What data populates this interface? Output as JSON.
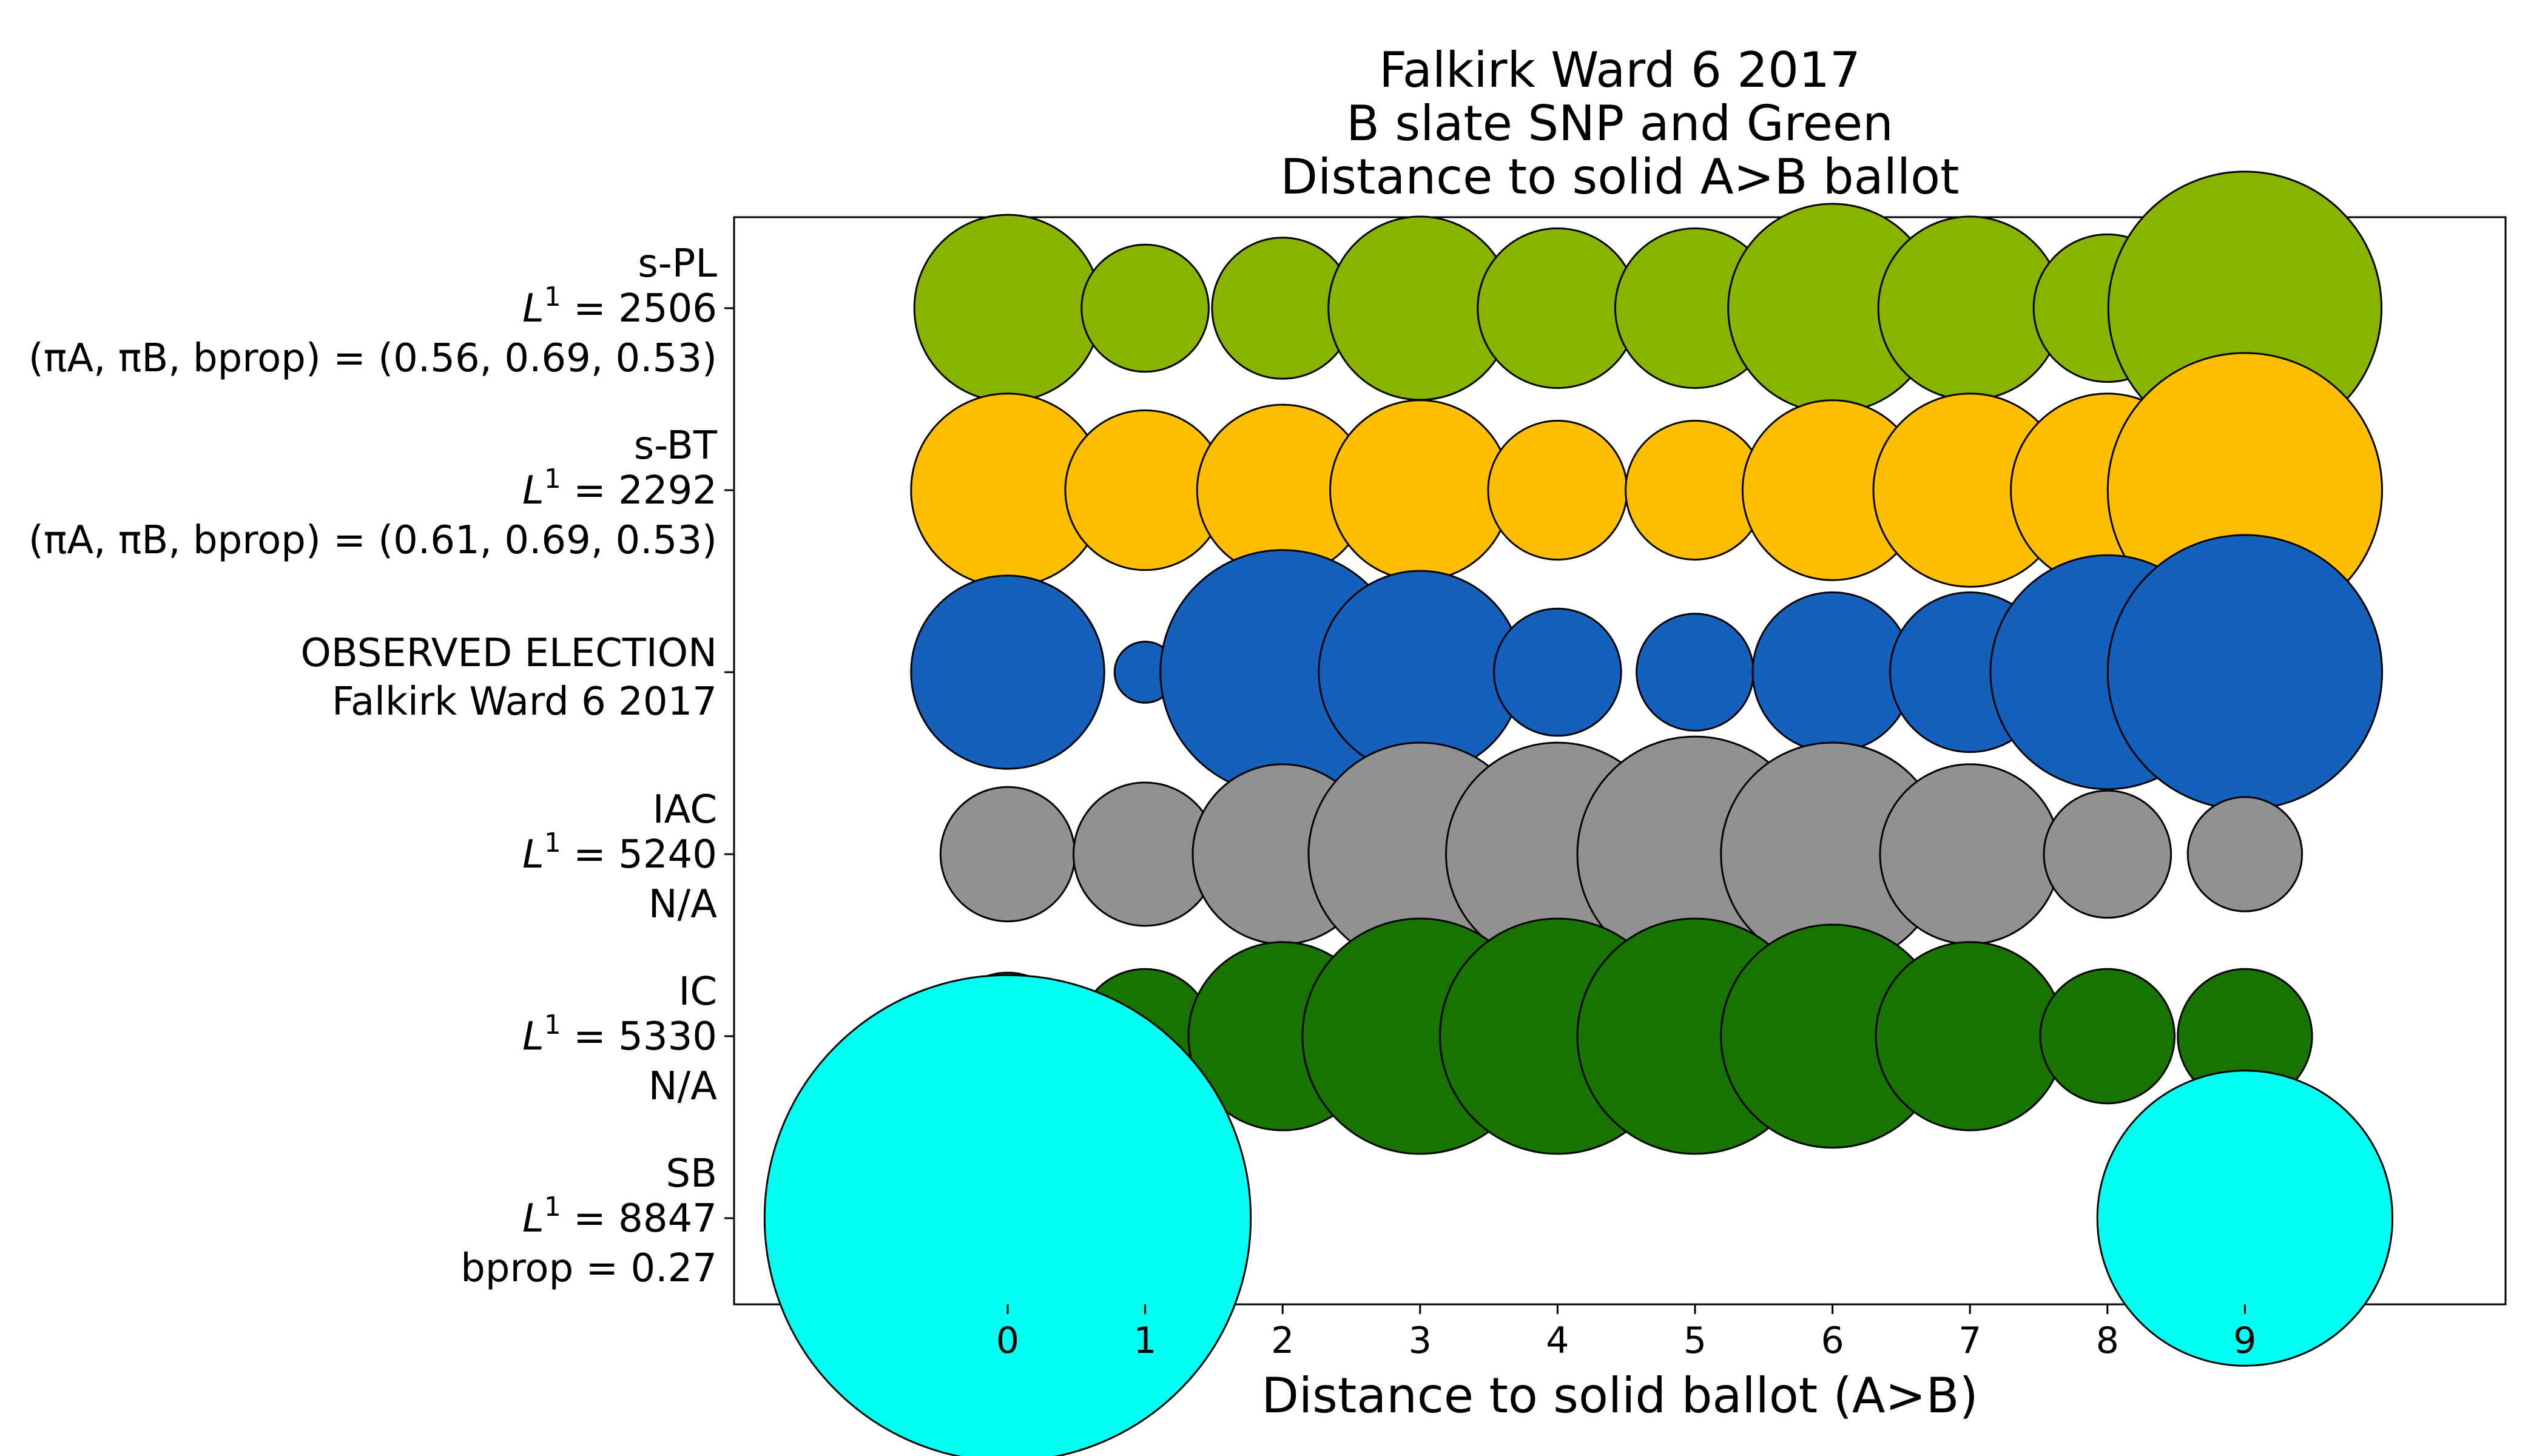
{
  "chart_data": {
    "type": "scatter",
    "title_lines": [
      "Falkirk Ward 6 2017",
      "B slate SNP and Green",
      "Distance to solid A>B ballot"
    ],
    "xlabel": "Distance to solid ballot (A>B)",
    "ylabel": "",
    "x_ticks": [
      "0",
      "1",
      "2",
      "3",
      "4",
      "5",
      "6",
      "7",
      "8",
      "9"
    ],
    "xlim": [
      -2,
      11
    ],
    "grid": false,
    "series": [
      {
        "key": "s-pl",
        "color": "#88b400",
        "label": {
          "name": "s-PL",
          "metric_symbol": "L",
          "metric_power": "1",
          "metric_value": "= 2506",
          "params_text": "(πA, πB, bprop) = (0.56, 0.69, 0.53)"
        },
        "values": [
          0.056,
          0.026,
          0.032,
          0.054,
          0.041,
          0.041,
          0.07,
          0.054,
          0.035,
          0.12
        ]
      },
      {
        "key": "s-bt",
        "color": "#ffbf00",
        "label": {
          "name": "s-BT",
          "metric_symbol": "L",
          "metric_power": "1",
          "metric_value": "= 2292",
          "params_text": "(πA, πB, bprop) = (0.61, 0.69, 0.53)"
        },
        "values": [
          0.06,
          0.041,
          0.047,
          0.052,
          0.031,
          0.031,
          0.052,
          0.06,
          0.06,
          0.121
        ]
      },
      {
        "key": "observed",
        "color": "#1560bd",
        "label": {
          "name": "OBSERVED ELECTION",
          "subtitle": "Falkirk Ward 6 2017"
        },
        "values": [
          0.06,
          0.006,
          0.096,
          0.066,
          0.026,
          0.022,
          0.041,
          0.041,
          0.088,
          0.121
        ]
      },
      {
        "key": "iac",
        "color": "#919191",
        "label": {
          "name": "IAC",
          "metric_symbol": "L",
          "metric_power": "1",
          "metric_value": "= 5240",
          "params_text": "N/A"
        },
        "values": [
          0.029,
          0.033,
          0.052,
          0.08,
          0.08,
          0.089,
          0.08,
          0.052,
          0.026,
          0.021
        ]
      },
      {
        "key": "ic",
        "color": "#197300",
        "label": {
          "name": "IC",
          "metric_symbol": "L",
          "metric_power": "1",
          "metric_value": "= 5330",
          "params_text": "N/A"
        },
        "values": [
          0.026,
          0.029,
          0.057,
          0.089,
          0.089,
          0.089,
          0.08,
          0.057,
          0.029,
          0.029
        ]
      },
      {
        "key": "sb",
        "color": "#00fff0",
        "label": {
          "name": "SB",
          "metric_symbol": "L",
          "metric_power": "1",
          "metric_value": "= 8847",
          "params_text": "bprop = 0.27"
        },
        "values": [
          0.38,
          null,
          null,
          null,
          null,
          null,
          null,
          null,
          null,
          0.14
        ]
      }
    ]
  }
}
